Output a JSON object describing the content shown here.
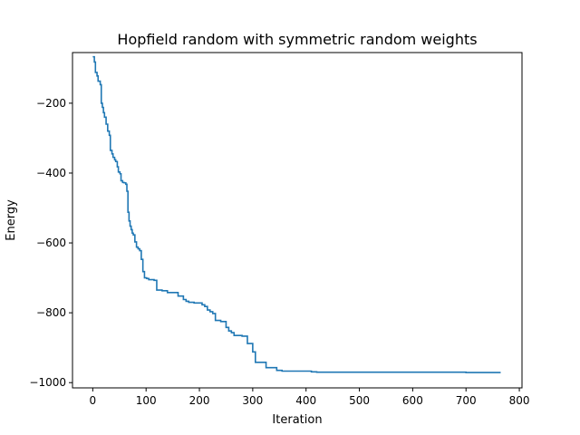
{
  "chart_data": {
    "type": "line",
    "title": "Hopfield random with symmetric random weights",
    "xlabel": "Iteration",
    "ylabel": "Energy",
    "xlim": [
      -38,
      805
    ],
    "ylim": [
      -1015,
      -55
    ],
    "xticks": [
      0,
      100,
      200,
      300,
      400,
      500,
      600,
      700,
      800
    ],
    "yticks": [
      -1000,
      -800,
      -600,
      -400,
      -200
    ],
    "grid": false,
    "series": [
      {
        "color": "#1f77b4",
        "step": true,
        "x": [
          0,
          3,
          5,
          8,
          10,
          14,
          16,
          18,
          20,
          22,
          25,
          28,
          31,
          33,
          36,
          38,
          41,
          43,
          46,
          48,
          51,
          53,
          56,
          59,
          62,
          64,
          66,
          68,
          70,
          72,
          74,
          76,
          79,
          82,
          85,
          88,
          91,
          94,
          97,
          101,
          105,
          110,
          115,
          120,
          130,
          140,
          150,
          160,
          170,
          175,
          180,
          190,
          205,
          210,
          215,
          220,
          225,
          230,
          240,
          250,
          255,
          260,
          265,
          280,
          290,
          300,
          305,
          310,
          320,
          325,
          335,
          345,
          355,
          365,
          380,
          410,
          420,
          600,
          700,
          765
        ],
        "y": [
          -67,
          -82,
          -112,
          -122,
          -137,
          -147,
          -200,
          -212,
          -227,
          -240,
          -260,
          -280,
          -292,
          -335,
          -345,
          -355,
          -362,
          -367,
          -382,
          -397,
          -402,
          -422,
          -427,
          -428,
          -432,
          -452,
          -512,
          -537,
          -552,
          -562,
          -572,
          -577,
          -597,
          -612,
          -617,
          -622,
          -647,
          -682,
          -700,
          -702,
          -705,
          -705,
          -707,
          -735,
          -737,
          -742,
          -742,
          -752,
          -762,
          -767,
          -770,
          -772,
          -777,
          -782,
          -792,
          -797,
          -802,
          -822,
          -825,
          -842,
          -852,
          -857,
          -865,
          -867,
          -888,
          -912,
          -942,
          -942,
          -942,
          -957,
          -957,
          -965,
          -967,
          -967,
          -967,
          -969,
          -970,
          -970,
          -971,
          -971
        ]
      }
    ]
  }
}
